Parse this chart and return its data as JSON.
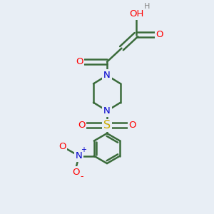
{
  "bg_color": "#e8eef5",
  "bond_color": "#3a6b3a",
  "bond_width": 1.8,
  "atom_colors": {
    "O": "#ff0000",
    "N": "#0000cc",
    "S": "#ccaa00",
    "H": "#888888",
    "C": "#3a6b3a"
  },
  "font_size": 9.5
}
